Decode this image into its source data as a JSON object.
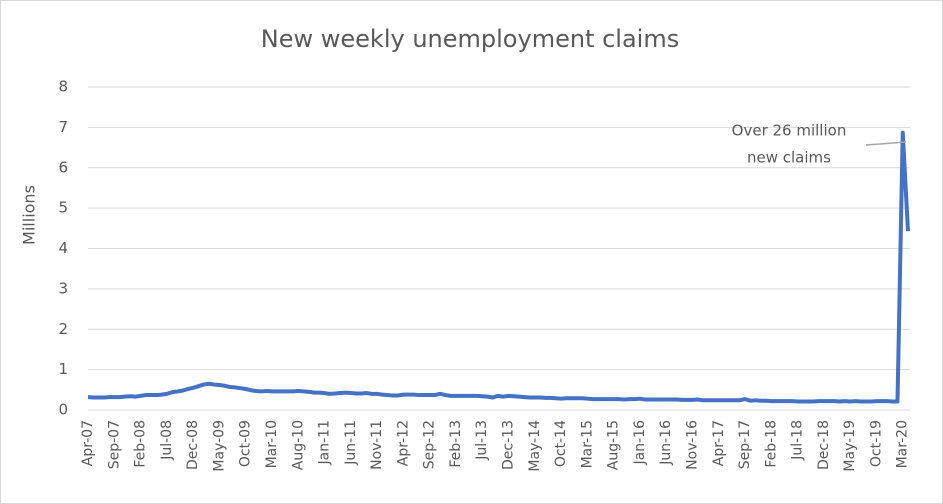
{
  "chart_data": {
    "type": "line",
    "title": "New weekly unemployment claims",
    "y_label": "Millions",
    "annotation_lines": [
      "Over 26 million",
      "new claims"
    ],
    "categories": [
      "Apr-07",
      null,
      null,
      null,
      null,
      "Sep-07",
      null,
      null,
      null,
      null,
      "Feb-08",
      null,
      null,
      null,
      null,
      "Jul-08",
      null,
      null,
      null,
      null,
      "Dec-08",
      null,
      null,
      null,
      null,
      "May-09",
      null,
      null,
      null,
      null,
      "Oct-09",
      null,
      null,
      null,
      null,
      "Mar-10",
      null,
      null,
      null,
      null,
      "Aug-10",
      null,
      null,
      null,
      null,
      "Jan-11",
      null,
      null,
      null,
      null,
      "Jun-11",
      null,
      null,
      null,
      null,
      "Nov-11",
      null,
      null,
      null,
      null,
      "Apr-12",
      null,
      null,
      null,
      null,
      "Sep-12",
      null,
      null,
      null,
      null,
      "Feb-13",
      null,
      null,
      null,
      null,
      "Jul-13",
      null,
      null,
      null,
      null,
      "Dec-13",
      null,
      null,
      null,
      null,
      "May-14",
      null,
      null,
      null,
      null,
      "Oct-14",
      null,
      null,
      null,
      null,
      "Mar-15",
      null,
      null,
      null,
      null,
      "Aug-15",
      null,
      null,
      null,
      null,
      "Jan-16",
      null,
      null,
      null,
      null,
      "Jun-16",
      null,
      null,
      null,
      null,
      "Nov-16",
      null,
      null,
      null,
      null,
      "Apr-17",
      null,
      null,
      null,
      null,
      "Sep-17",
      null,
      null,
      null,
      null,
      "Feb-18",
      null,
      null,
      null,
      null,
      "Jul-18",
      null,
      null,
      null,
      null,
      "Dec-18",
      null,
      null,
      null,
      null,
      "May-19",
      null,
      null,
      null,
      null,
      "Oct-19",
      null,
      null,
      null,
      null,
      "Mar-20",
      null
    ],
    "series": [
      {
        "name": "New claims",
        "color": "#4472c4",
        "values": [
          0.32,
          0.31,
          0.31,
          0.31,
          0.32,
          0.32,
          0.32,
          0.33,
          0.34,
          0.33,
          0.35,
          0.37,
          0.37,
          0.37,
          0.38,
          0.4,
          0.44,
          0.46,
          0.48,
          0.52,
          0.55,
          0.59,
          0.63,
          0.65,
          0.63,
          0.62,
          0.6,
          0.57,
          0.56,
          0.54,
          0.52,
          0.49,
          0.47,
          0.46,
          0.47,
          0.46,
          0.46,
          0.46,
          0.46,
          0.46,
          0.47,
          0.46,
          0.45,
          0.43,
          0.43,
          0.42,
          0.4,
          0.41,
          0.42,
          0.43,
          0.42,
          0.41,
          0.41,
          0.42,
          0.4,
          0.4,
          0.38,
          0.37,
          0.36,
          0.36,
          0.38,
          0.38,
          0.38,
          0.37,
          0.37,
          0.37,
          0.37,
          0.4,
          0.37,
          0.35,
          0.35,
          0.35,
          0.35,
          0.35,
          0.35,
          0.34,
          0.33,
          0.31,
          0.35,
          0.33,
          0.35,
          0.34,
          0.33,
          0.32,
          0.31,
          0.31,
          0.31,
          0.3,
          0.3,
          0.29,
          0.28,
          0.29,
          0.29,
          0.29,
          0.29,
          0.28,
          0.27,
          0.27,
          0.27,
          0.27,
          0.27,
          0.27,
          0.26,
          0.27,
          0.27,
          0.28,
          0.26,
          0.26,
          0.26,
          0.26,
          0.26,
          0.26,
          0.26,
          0.25,
          0.25,
          0.25,
          0.26,
          0.24,
          0.24,
          0.24,
          0.24,
          0.24,
          0.24,
          0.24,
          0.24,
          0.27,
          0.23,
          0.24,
          0.23,
          0.23,
          0.22,
          0.22,
          0.22,
          0.22,
          0.22,
          0.21,
          0.21,
          0.21,
          0.21,
          0.22,
          0.22,
          0.22,
          0.22,
          0.21,
          0.22,
          0.21,
          0.22,
          0.21,
          0.21,
          0.21,
          0.22,
          0.22,
          0.22,
          0.21,
          0.21,
          6.87,
          4.43
        ]
      }
    ],
    "ylim": [
      0,
      8
    ],
    "yticks": [
      0,
      1,
      2,
      3,
      4,
      5,
      6,
      7,
      8
    ],
    "grid": true
  }
}
